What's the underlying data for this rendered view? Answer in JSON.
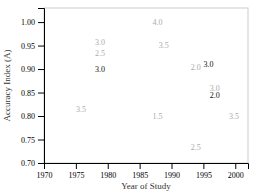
{
  "chart_data": {
    "type": "scatter",
    "xlabel": "Year of Study",
    "ylabel": "Accuracy Index (A)",
    "xlim": [
      1970,
      2002
    ],
    "ylim": [
      0.7,
      1.03
    ],
    "xticks": [
      1970,
      1975,
      1980,
      1985,
      1990,
      1995,
      2000
    ],
    "yticks": [
      {
        "value": 0.7,
        "label": "0.70"
      },
      0.75,
      {
        "value": 0.8,
        "label": "0.80"
      },
      0.85,
      {
        "value": 0.9,
        "label": "0.90"
      },
      0.95,
      {
        "value": 1.0,
        "label": "1.00"
      }
    ],
    "annotations": [
      {
        "x": 1975,
        "y": 0.815,
        "text": "3.5",
        "color": "#aaaaaa"
      },
      {
        "x": 1978,
        "y": 0.958,
        "text": "3.0",
        "color": "#aaaaaa"
      },
      {
        "x": 1978,
        "y": 0.934,
        "text": "2.5",
        "color": "#aaaaaa"
      },
      {
        "x": 1978,
        "y": 0.9,
        "text": "3.0",
        "color": "#111111"
      },
      {
        "x": 1987,
        "y": 0.999,
        "text": "4.0",
        "color": "#aaaaaa"
      },
      {
        "x": 1988,
        "y": 0.95,
        "text": "3.5",
        "color": "#aaaaaa"
      },
      {
        "x": 1987,
        "y": 0.8,
        "text": "1.5",
        "color": "#aaaaaa"
      },
      {
        "x": 1993,
        "y": 0.905,
        "text": "2.0",
        "color": "#aaaaaa"
      },
      {
        "x": 1993,
        "y": 0.733,
        "text": "2.5",
        "color": "#aaaaaa"
      },
      {
        "x": 1995,
        "y": 0.91,
        "text": "3.0",
        "color": "#111111"
      },
      {
        "x": 1996,
        "y": 0.86,
        "text": "3.0",
        "color": "#aaaaaa"
      },
      {
        "x": 1996,
        "y": 0.844,
        "text": "2.0",
        "color": "#111111"
      },
      {
        "x": 1999,
        "y": 0.8,
        "text": "3.5",
        "color": "#aaaaaa"
      }
    ]
  }
}
